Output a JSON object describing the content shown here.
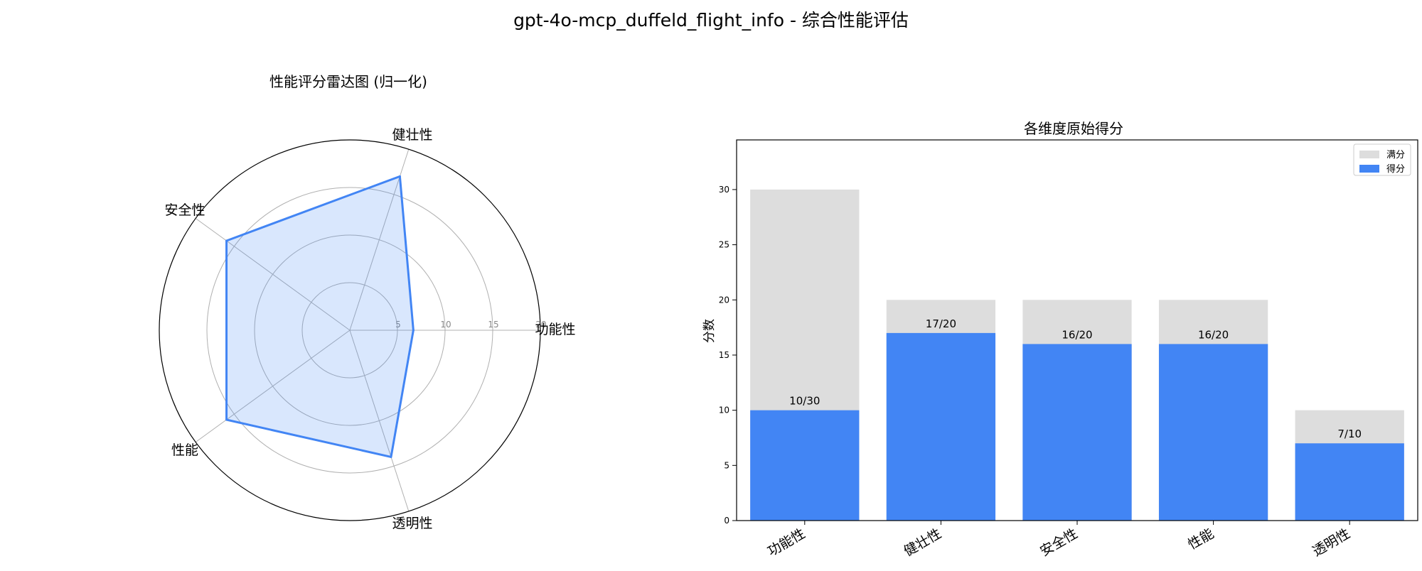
{
  "title": "gpt-4o-mcp_duffeld_flight_info - 综合性能评估",
  "chart_data": [
    {
      "type": "radar",
      "title": "性能评分雷达图 (归一化)",
      "categories": [
        "功能性",
        "健壮性",
        "安全性",
        "性能",
        "透明性"
      ],
      "values": [
        6.67,
        17,
        16,
        16,
        14
      ],
      "r_ticks": [
        5,
        10,
        15,
        20
      ],
      "r_max": 20,
      "colors": {
        "line": "#4285f4",
        "fill": "#4285f4"
      }
    },
    {
      "type": "bar",
      "title": "各维度原始得分",
      "ylabel": "分数",
      "categories": [
        "功能性",
        "健壮性",
        "安全性",
        "性能",
        "透明性"
      ],
      "series": [
        {
          "name": "满分",
          "values": [
            30,
            20,
            20,
            20,
            10
          ],
          "color": "#dddddd"
        },
        {
          "name": "得分",
          "values": [
            10,
            17,
            16,
            16,
            7
          ],
          "color": "#4285f4"
        }
      ],
      "data_labels": [
        "10/30",
        "17/20",
        "16/20",
        "16/20",
        "7/10"
      ],
      "yticks": [
        0,
        5,
        10,
        15,
        20,
        25,
        30
      ],
      "ylim": [
        0,
        34.5
      ],
      "legend": "top-right"
    }
  ]
}
